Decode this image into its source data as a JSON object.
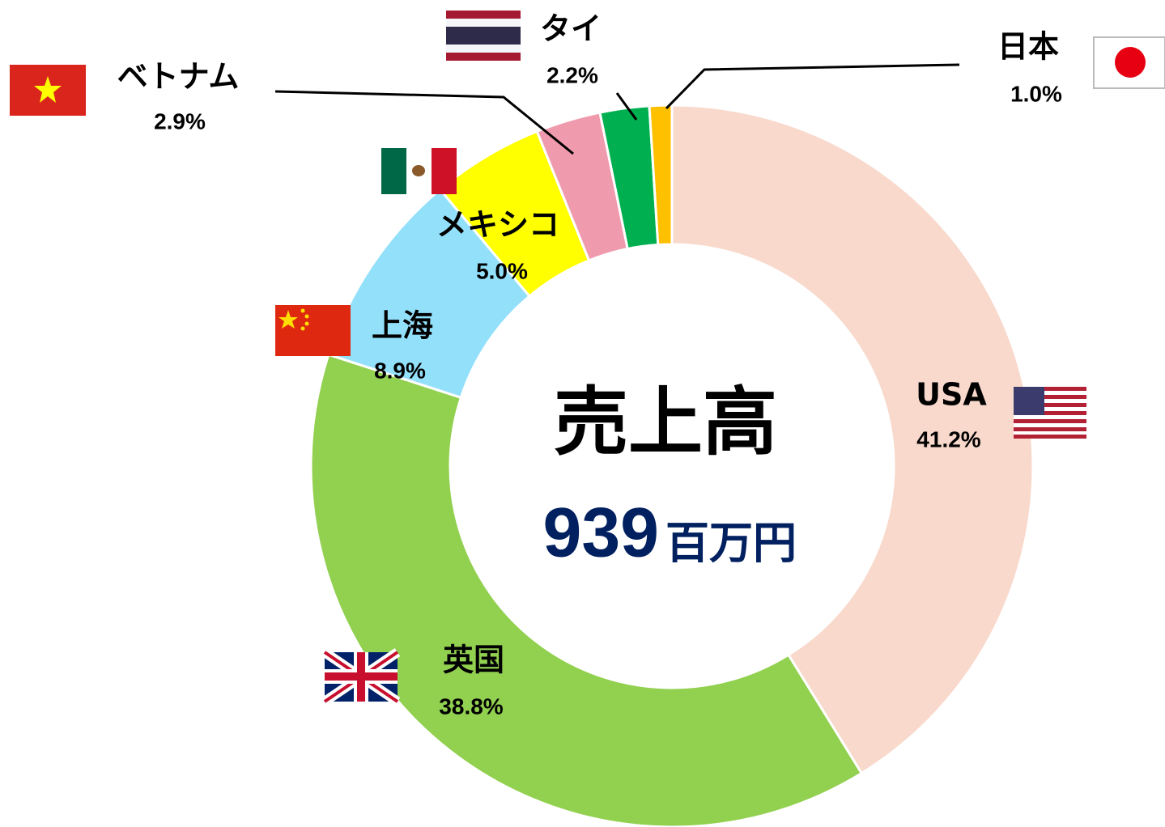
{
  "chart_data": {
    "type": "donut",
    "center_title": "売上高",
    "center_value": "939",
    "center_unit": "百万円",
    "categories": [
      "USA",
      "英国",
      "上海",
      "メキシコ",
      "ベトナム",
      "タイ",
      "日本"
    ],
    "values": [
      41.2,
      38.8,
      8.9,
      5.0,
      2.9,
      2.2,
      1.0
    ],
    "value_labels": [
      "41.2%",
      "38.8%",
      "8.9%",
      "5.0%",
      "2.9%",
      "2.2%",
      "1.0%"
    ],
    "colors": [
      "#f8d9cc",
      "#92d050",
      "#93e0fb",
      "#ffff00",
      "#f09aae",
      "#00b050",
      "#ffc000"
    ]
  }
}
